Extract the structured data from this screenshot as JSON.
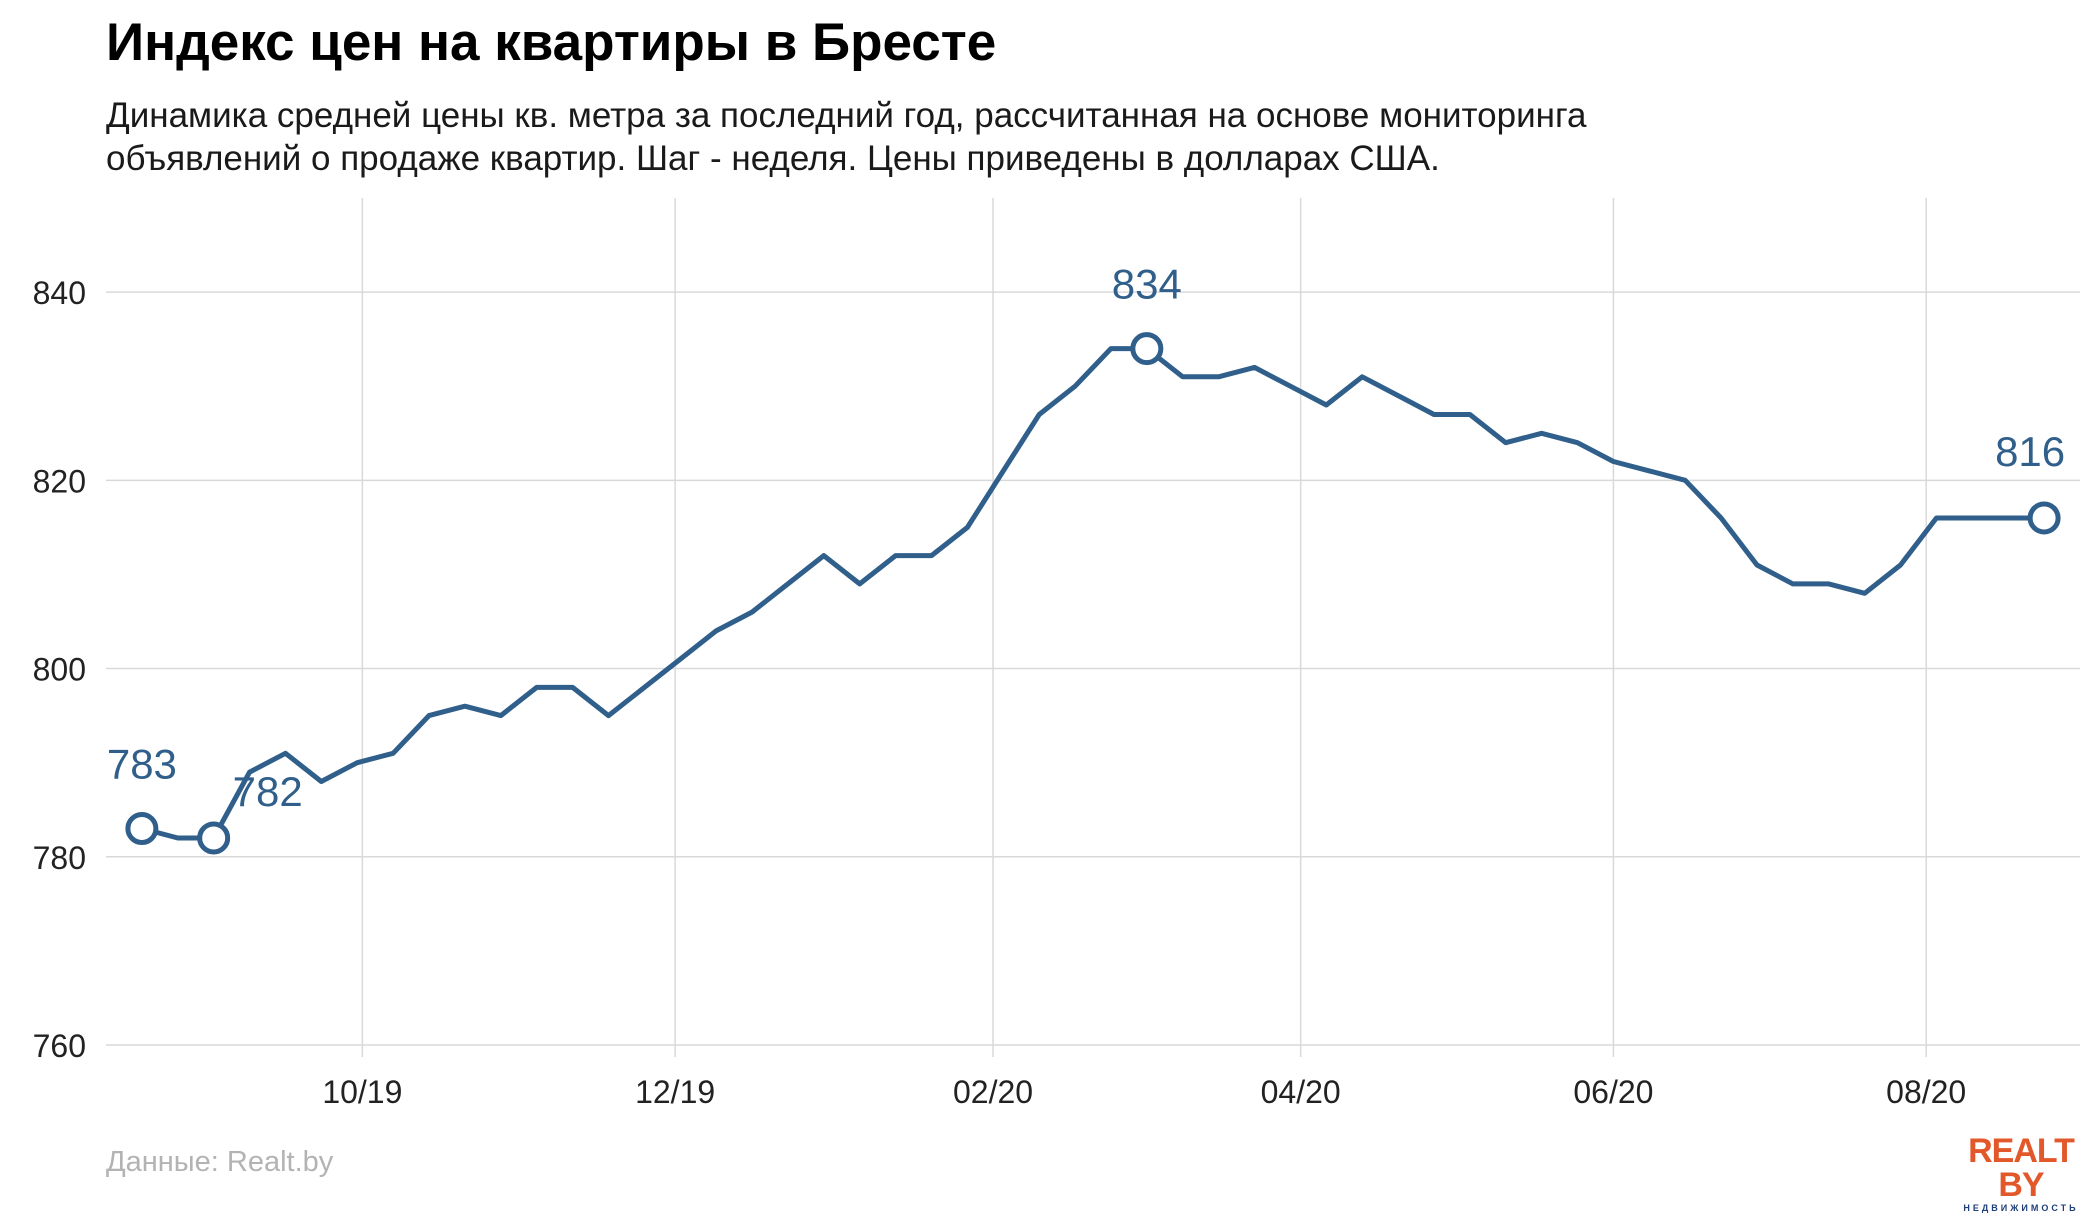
{
  "title": "Индекс цен на квартиры в Бресте",
  "subtitle_lines": [
    "Динамика средней цены кв. метра за последний год, рассчитанная на основе мониторинга",
    "объявлений о продаже квартир. Шаг - неделя. Цены приведены в долларах США."
  ],
  "source": "Данные: Realt.by",
  "logo": {
    "main": "REALT BY",
    "sub": "НЕДВИЖИМОСТЬ"
  },
  "colors": {
    "line": "#2f5f8a",
    "label": "#2f5f8a",
    "grid": "#d9d9d9",
    "axis_text": "#222222",
    "marker_fill": "#ffffff"
  },
  "chart_data": {
    "type": "line",
    "x_unit": "week",
    "x": [
      "2019-08-19",
      "2019-08-26",
      "2019-09-02",
      "2019-09-09",
      "2019-09-16",
      "2019-09-23",
      "2019-09-30",
      "2019-10-07",
      "2019-10-14",
      "2019-10-21",
      "2019-10-28",
      "2019-11-04",
      "2019-11-11",
      "2019-11-18",
      "2019-11-25",
      "2019-12-02",
      "2019-12-09",
      "2019-12-16",
      "2019-12-23",
      "2019-12-30",
      "2020-01-06",
      "2020-01-13",
      "2020-01-20",
      "2020-01-27",
      "2020-02-03",
      "2020-02-10",
      "2020-02-17",
      "2020-02-24",
      "2020-03-02",
      "2020-03-09",
      "2020-03-16",
      "2020-03-23",
      "2020-03-30",
      "2020-04-06",
      "2020-04-13",
      "2020-04-20",
      "2020-04-27",
      "2020-05-04",
      "2020-05-11",
      "2020-05-18",
      "2020-05-25",
      "2020-06-01",
      "2020-06-08",
      "2020-06-15",
      "2020-06-22",
      "2020-06-29",
      "2020-07-06",
      "2020-07-13",
      "2020-07-20",
      "2020-07-27",
      "2020-08-03",
      "2020-08-10",
      "2020-08-17",
      "2020-08-24"
    ],
    "series": [
      {
        "values": [
          783,
          782,
          782,
          789,
          791,
          788,
          790,
          791,
          795,
          796,
          795,
          798,
          798,
          795,
          798,
          801,
          804,
          806,
          809,
          812,
          809,
          812,
          812,
          815,
          821,
          827,
          830,
          834,
          834,
          831,
          831,
          832,
          830,
          828,
          831,
          829,
          827,
          827,
          824,
          825,
          824,
          822,
          821,
          820,
          816,
          811,
          809,
          809,
          808,
          811,
          816,
          816,
          816,
          816
        ]
      }
    ],
    "annotations": [
      {
        "x": "2019-08-19",
        "value": 783,
        "label": "783"
      },
      {
        "x": "2019-09-02",
        "value": 782,
        "label": "782"
      },
      {
        "x": "2020-03-02",
        "value": 834,
        "label": "834"
      },
      {
        "x": "2020-08-24",
        "value": 816,
        "label": "816"
      }
    ],
    "x_ticks": [
      {
        "x": "2019-10-01",
        "label": "10/19"
      },
      {
        "x": "2019-12-01",
        "label": "12/19"
      },
      {
        "x": "2020-02-01",
        "label": "02/20"
      },
      {
        "x": "2020-04-01",
        "label": "04/20"
      },
      {
        "x": "2020-06-01",
        "label": "06/20"
      },
      {
        "x": "2020-08-01",
        "label": "08/20"
      }
    ],
    "y_ticks": [
      760,
      780,
      800,
      820,
      840
    ],
    "ylim": [
      760,
      850
    ],
    "xlim": [
      "2019-08-12",
      "2020-08-31"
    ],
    "grid": true,
    "legend": "none"
  }
}
